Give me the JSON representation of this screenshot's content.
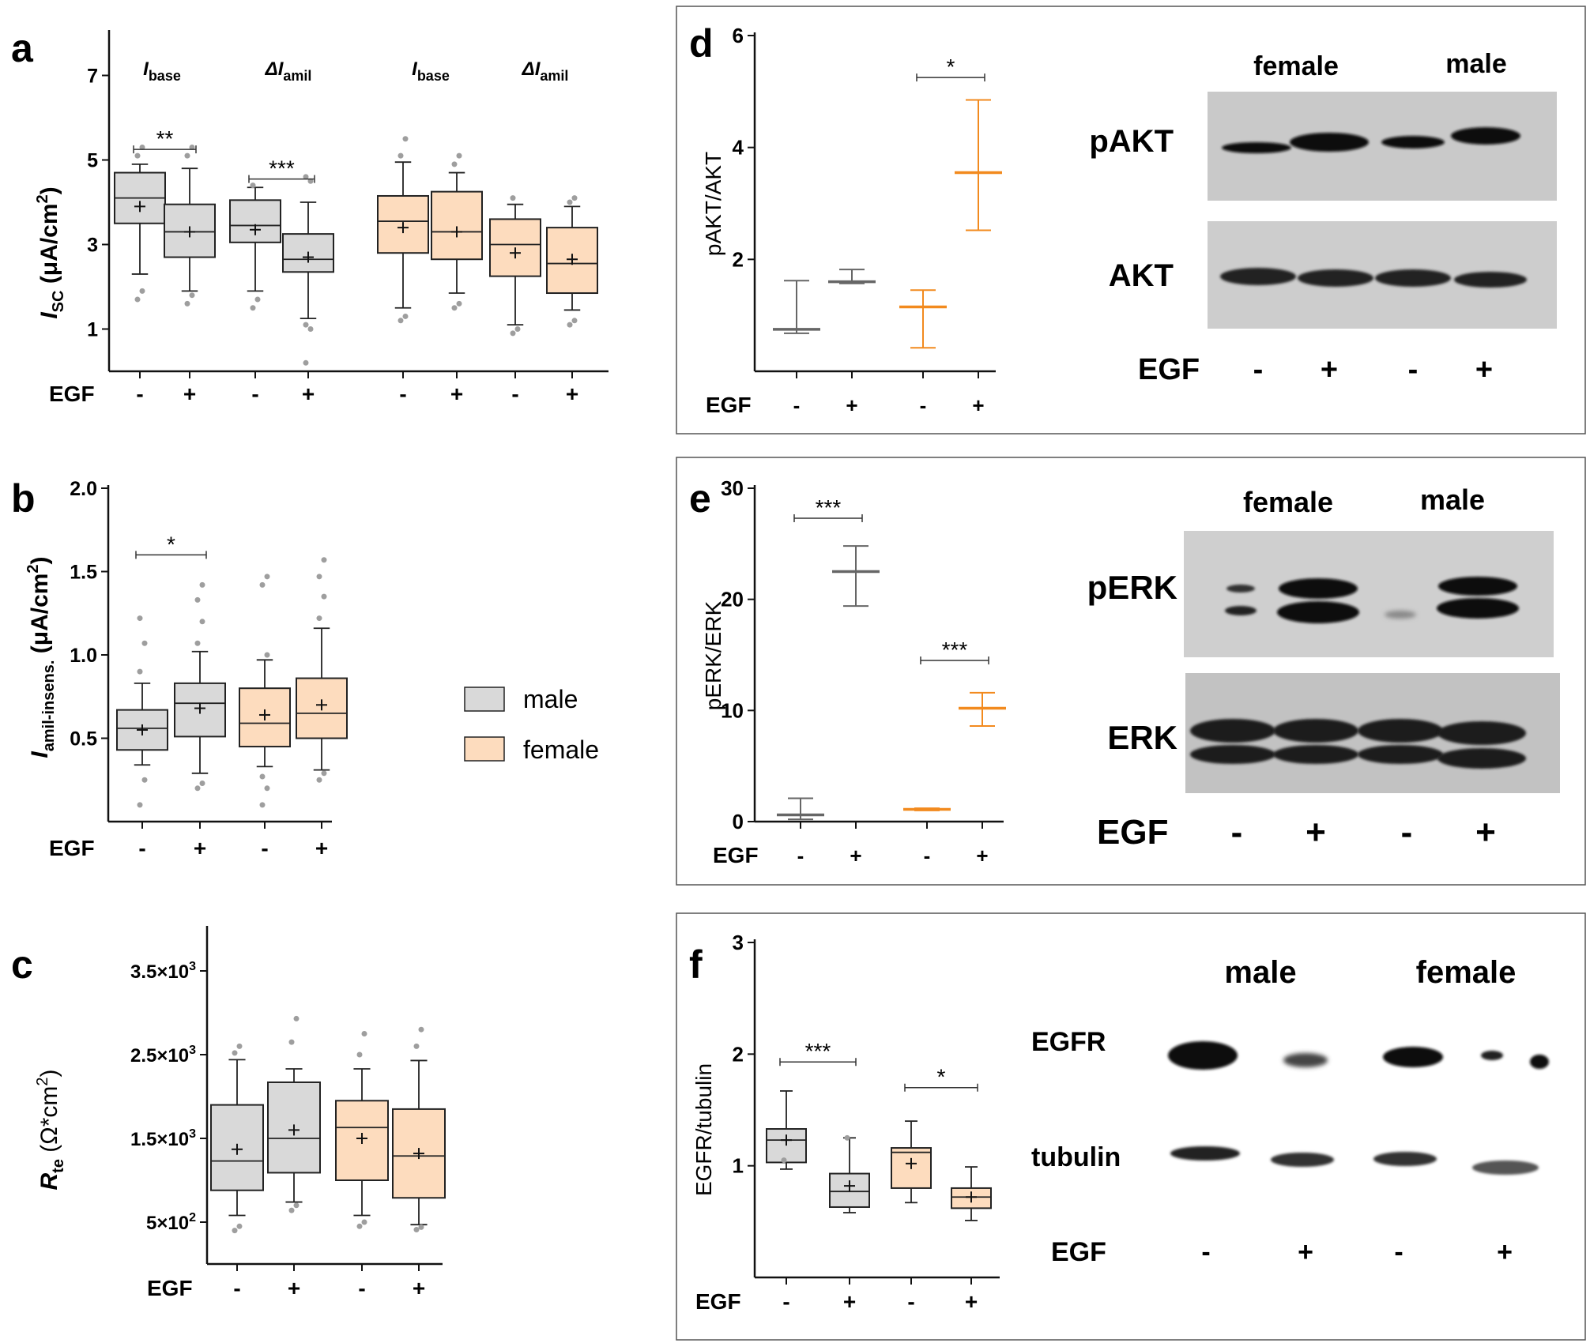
{
  "colors": {
    "male": "#d9d9d9",
    "female": "#fddcbe",
    "male_line": "#666666",
    "female_line": "#f28a1e",
    "dot": "#9e9e9e",
    "axis": "#111111"
  },
  "labels": {
    "egf": "EGF",
    "minus": "-",
    "plus": "+"
  },
  "legend": {
    "male": "male",
    "female": "female"
  },
  "panels": {
    "a": {
      "letter": "a",
      "ylabel": {
        "main": "I",
        "sub": "SC",
        "unit": " (μA/cm",
        "sup": "2",
        "close": ")"
      },
      "headers": [
        {
          "main": "I",
          "sub": "base"
        },
        {
          "main": "ΔI",
          "sub": "amil"
        },
        {
          "main": "I",
          "sub": "base"
        },
        {
          "main": "ΔI",
          "sub": "amil"
        }
      ]
    },
    "b": {
      "letter": "b",
      "ylabel": {
        "main": "I",
        "sub": "amil-insens.",
        "unit": " (μA/cm",
        "sup": "2",
        "close": ")"
      }
    },
    "c": {
      "letter": "c",
      "ylabel": {
        "main": "R",
        "sub": "te",
        "unit": " (Ω*cm",
        "sup": "2",
        "close": ")"
      }
    },
    "d": {
      "letter": "d",
      "ylabel": "pAKT/AKT"
    },
    "e": {
      "letter": "e",
      "ylabel": "pERK/ERK"
    },
    "f": {
      "letter": "f",
      "ylabel": "EGFR/tubulin"
    }
  },
  "blots": {
    "d": {
      "groups": [
        "female",
        "male"
      ],
      "rows": [
        "pAKT",
        "AKT"
      ]
    },
    "e": {
      "groups": [
        "female",
        "male"
      ],
      "rows": [
        "pERK",
        "ERK"
      ]
    },
    "f": {
      "groups": [
        "male",
        "female"
      ],
      "rows": [
        "EGFR",
        "tubulin"
      ]
    }
  },
  "chart_data": [
    {
      "id": "a",
      "type": "box",
      "ylim": [
        0,
        8
      ],
      "yticks": [
        1,
        3,
        5,
        7
      ],
      "yticklabels": [
        "1",
        "3",
        "5",
        "7"
      ],
      "boxes": [
        {
          "sex": "male",
          "egf": "-",
          "min": 2.3,
          "q1": 3.5,
          "median": 4.1,
          "q3": 4.7,
          "max": 4.9,
          "mean": 3.9,
          "outliers": [
            1.7,
            1.9,
            5.1,
            5.3
          ]
        },
        {
          "sex": "male",
          "egf": "+",
          "min": 1.9,
          "q1": 2.7,
          "median": 3.3,
          "q3": 3.95,
          "max": 4.8,
          "mean": 3.3,
          "outliers": [
            1.6,
            1.8,
            5.1,
            5.3
          ]
        },
        {
          "sex": "male",
          "egf": "-",
          "min": 1.9,
          "q1": 3.05,
          "median": 3.45,
          "q3": 4.05,
          "max": 4.35,
          "mean": 3.35,
          "outliers": [
            1.5,
            1.7,
            4.4
          ]
        },
        {
          "sex": "male",
          "egf": "+",
          "min": 1.25,
          "q1": 2.35,
          "median": 2.65,
          "q3": 3.25,
          "max": 4.0,
          "mean": 2.7,
          "outliers": [
            0.2,
            1.0,
            1.1,
            4.5,
            4.6
          ]
        },
        {
          "sex": "female",
          "egf": "-",
          "min": 1.5,
          "q1": 2.8,
          "median": 3.55,
          "q3": 4.15,
          "max": 4.95,
          "mean": 3.4,
          "outliers": [
            1.2,
            1.3,
            5.1,
            5.5
          ]
        },
        {
          "sex": "female",
          "egf": "+",
          "min": 1.85,
          "q1": 2.65,
          "median": 3.3,
          "q3": 4.25,
          "max": 4.7,
          "mean": 3.3,
          "outliers": [
            1.5,
            1.6,
            4.9,
            5.1
          ]
        },
        {
          "sex": "female",
          "egf": "-",
          "min": 1.1,
          "q1": 2.25,
          "median": 3.0,
          "q3": 3.6,
          "max": 3.95,
          "mean": 2.8,
          "outliers": [
            0.9,
            1.0,
            4.1
          ]
        },
        {
          "sex": "female",
          "egf": "+",
          "min": 1.45,
          "q1": 1.85,
          "median": 2.55,
          "q3": 3.4,
          "max": 3.9,
          "mean": 2.65,
          "outliers": [
            1.1,
            1.2,
            4.0,
            4.1
          ]
        }
      ],
      "significance": [
        {
          "from": 0,
          "to": 1,
          "y": 5.25,
          "text": "**"
        },
        {
          "from": 2,
          "to": 3,
          "y": 4.55,
          "text": "***"
        }
      ]
    },
    {
      "id": "b",
      "type": "box",
      "ylim": [
        0,
        2.0
      ],
      "yticks": [
        0.5,
        1.0,
        1.5,
        2.0
      ],
      "yticklabels": [
        "0.5",
        "1.0",
        "1.5",
        "2.0"
      ],
      "boxes": [
        {
          "sex": "male",
          "egf": "-",
          "min": 0.34,
          "q1": 0.43,
          "median": 0.56,
          "q3": 0.67,
          "max": 0.83,
          "mean": 0.55,
          "outliers": [
            0.1,
            0.25,
            0.9,
            1.07,
            1.22
          ]
        },
        {
          "sex": "male",
          "egf": "+",
          "min": 0.29,
          "q1": 0.51,
          "median": 0.71,
          "q3": 0.83,
          "max": 1.02,
          "mean": 0.68,
          "outliers": [
            0.2,
            0.23,
            1.07,
            1.2,
            1.33,
            1.42
          ]
        },
        {
          "sex": "female",
          "egf": "-",
          "min": 0.33,
          "q1": 0.45,
          "median": 0.59,
          "q3": 0.8,
          "max": 0.97,
          "mean": 0.64,
          "outliers": [
            0.1,
            0.2,
            0.27,
            1.0,
            1.42,
            1.47
          ]
        },
        {
          "sex": "female",
          "egf": "+",
          "min": 0.31,
          "q1": 0.5,
          "median": 0.65,
          "q3": 0.86,
          "max": 1.16,
          "mean": 0.7,
          "outliers": [
            0.25,
            0.29,
            1.22,
            1.35,
            1.47,
            1.57
          ]
        }
      ],
      "significance": [
        {
          "from": 0,
          "to": 1,
          "y": 1.6,
          "text": "*"
        }
      ]
    },
    {
      "id": "c",
      "type": "box",
      "ylim": [
        0,
        4000
      ],
      "yticks": [
        500,
        1500,
        2500,
        3500
      ],
      "yticklabels": [
        "5×10²",
        "1.5×10³",
        "2.5×10³",
        "3.5×10³"
      ],
      "boxes": [
        {
          "sex": "male",
          "egf": "-",
          "min": 580,
          "q1": 880,
          "median": 1230,
          "q3": 1900,
          "max": 2440,
          "mean": 1370,
          "outliers": [
            400,
            450,
            2520,
            2600
          ]
        },
        {
          "sex": "male",
          "egf": "+",
          "min": 740,
          "q1": 1090,
          "median": 1500,
          "q3": 2170,
          "max": 2330,
          "mean": 1600,
          "outliers": [
            640,
            700,
            2650,
            2930
          ]
        },
        {
          "sex": "female",
          "egf": "-",
          "min": 580,
          "q1": 1000,
          "median": 1630,
          "q3": 1950,
          "max": 2330,
          "mean": 1500,
          "outliers": [
            450,
            500,
            2500,
            2750
          ]
        },
        {
          "sex": "female",
          "egf": "+",
          "min": 470,
          "q1": 790,
          "median": 1290,
          "q3": 1850,
          "max": 2430,
          "mean": 1320,
          "outliers": [
            410,
            440,
            2600,
            2800
          ]
        }
      ],
      "significance": []
    },
    {
      "id": "d",
      "type": "errorbar",
      "ylim": [
        0,
        6
      ],
      "yticks": [
        2,
        4,
        6
      ],
      "yticklabels": [
        "2",
        "4",
        "6"
      ],
      "points": [
        {
          "sex": "male",
          "egf": "-",
          "mean": 0.75,
          "low": 0.68,
          "high": 1.62
        },
        {
          "sex": "male",
          "egf": "+",
          "mean": 1.6,
          "low": 1.57,
          "high": 1.82
        },
        {
          "sex": "female",
          "egf": "-",
          "mean": 1.15,
          "low": 0.42,
          "high": 1.45
        },
        {
          "sex": "female",
          "egf": "+",
          "mean": 3.55,
          "low": 2.52,
          "high": 4.85
        }
      ],
      "significance": [
        {
          "from": 2,
          "to": 3,
          "y": 5.25,
          "text": "*"
        }
      ]
    },
    {
      "id": "e",
      "type": "errorbar",
      "ylim": [
        0,
        30
      ],
      "yticks": [
        0,
        10,
        20,
        30
      ],
      "yticklabels": [
        "0",
        "10",
        "20",
        "30"
      ],
      "points": [
        {
          "sex": "male",
          "egf": "-",
          "mean": 0.6,
          "low": 0.2,
          "high": 2.1
        },
        {
          "sex": "male",
          "egf": "+",
          "mean": 22.5,
          "low": 19.4,
          "high": 24.8
        },
        {
          "sex": "female",
          "egf": "-",
          "mean": 1.1,
          "low": 1.0,
          "high": 1.2
        },
        {
          "sex": "female",
          "egf": "+",
          "mean": 10.2,
          "low": 8.6,
          "high": 11.6
        }
      ],
      "significance": [
        {
          "from": 0,
          "to": 1,
          "y": 27.3,
          "text": "***"
        },
        {
          "from": 2,
          "to": 3,
          "y": 14.5,
          "text": "***"
        }
      ]
    },
    {
      "id": "f",
      "type": "box",
      "ylim": [
        0,
        3
      ],
      "yticks": [
        1,
        2,
        3
      ],
      "yticklabels": [
        "1",
        "2",
        "3"
      ],
      "boxes": [
        {
          "sex": "male",
          "egf": "-",
          "min": 0.97,
          "q1": 1.03,
          "median": 1.23,
          "q3": 1.33,
          "max": 1.67,
          "mean": 1.23,
          "outliers": [
            1.05
          ]
        },
        {
          "sex": "male",
          "egf": "+",
          "min": 0.58,
          "q1": 0.63,
          "median": 0.77,
          "q3": 0.93,
          "max": 1.25,
          "mean": 0.82,
          "outliers": [
            1.25
          ]
        },
        {
          "sex": "female",
          "egf": "-",
          "min": 0.67,
          "q1": 0.8,
          "median": 1.12,
          "q3": 1.16,
          "max": 1.4,
          "mean": 1.02,
          "outliers": []
        },
        {
          "sex": "female",
          "egf": "+",
          "min": 0.51,
          "q1": 0.62,
          "median": 0.72,
          "q3": 0.8,
          "max": 0.99,
          "mean": 0.72,
          "outliers": []
        }
      ],
      "significance": [
        {
          "from": 0,
          "to": 1,
          "y": 1.93,
          "text": "***"
        },
        {
          "from": 2,
          "to": 3,
          "y": 1.7,
          "text": "*"
        }
      ]
    }
  ]
}
